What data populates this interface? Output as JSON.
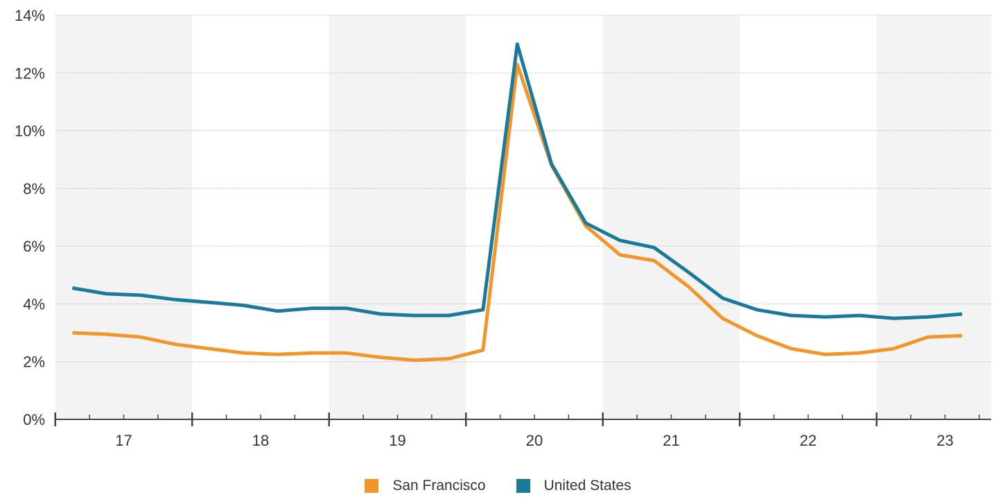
{
  "chart_data": {
    "type": "line",
    "title": "",
    "xlabel": "",
    "ylabel": "",
    "x_unit": "year (20xx)",
    "x_tick_labels": [
      "17",
      "18",
      "19",
      "20",
      "21",
      "22",
      "23"
    ],
    "y_tick_labels": [
      "0%",
      "2%",
      "4%",
      "6%",
      "8%",
      "10%",
      "12%",
      "14%"
    ],
    "ylim": [
      0,
      14
    ],
    "xlim": [
      2016.5,
      2023.33
    ],
    "grid": "horizontal dotted",
    "background_bands": "alternating years shaded",
    "legend_placement": "bottom-center",
    "x": [
      2016.625,
      2016.875,
      2017.125,
      2017.375,
      2017.625,
      2017.875,
      2018.125,
      2018.375,
      2018.625,
      2018.875,
      2019.125,
      2019.375,
      2019.625,
      2019.875,
      2020.125,
      2020.375,
      2020.625,
      2020.875,
      2021.125,
      2021.375,
      2021.625,
      2021.875,
      2022.125,
      2022.375,
      2022.625,
      2022.875,
      2023.125
    ],
    "series": [
      {
        "name": "San Francisco",
        "color": "#f0962a",
        "values": [
          3.0,
          2.95,
          2.85,
          2.6,
          2.45,
          2.3,
          2.25,
          2.3,
          2.3,
          2.15,
          2.05,
          2.1,
          2.4,
          12.3,
          8.8,
          6.7,
          5.7,
          5.5,
          4.6,
          3.5,
          2.9,
          2.45,
          2.25,
          2.3,
          2.45,
          2.85,
          2.9
        ]
      },
      {
        "name": "United States",
        "color": "#1b7a9c",
        "values": [
          4.55,
          4.35,
          4.3,
          4.15,
          4.05,
          3.95,
          3.75,
          3.85,
          3.85,
          3.65,
          3.6,
          3.6,
          3.8,
          13.0,
          8.85,
          6.8,
          6.2,
          5.95,
          5.1,
          4.2,
          3.8,
          3.6,
          3.55,
          3.6,
          3.5,
          3.55,
          3.65
        ]
      }
    ]
  },
  "colors": {
    "band": "#f3f3f3",
    "grid": "#aaaaaa",
    "axis": "#444444"
  }
}
